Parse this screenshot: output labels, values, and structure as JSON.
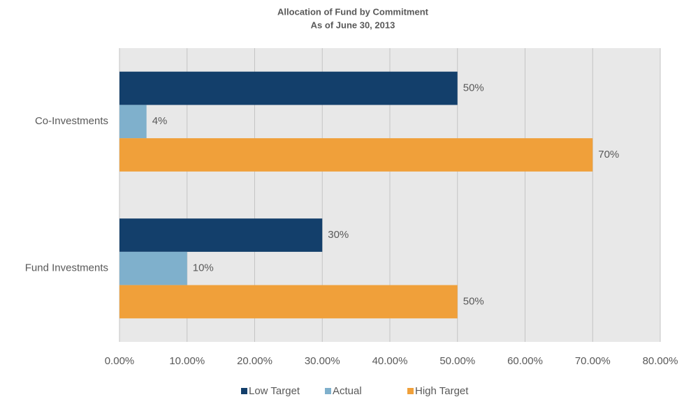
{
  "chart_data": {
    "type": "hbar",
    "title": "Allocation of Fund by Commitment",
    "subtitle": "As of June 30, 2013",
    "categories": [
      "Co-Investments",
      "Fund Investments"
    ],
    "series": [
      {
        "name": "Low Target",
        "color": "#133f6b",
        "values": [
          50,
          30
        ],
        "value_labels": [
          "50%",
          "30%"
        ]
      },
      {
        "name": "Actual",
        "color": "#7fb0cc",
        "values": [
          4,
          10
        ],
        "value_labels": [
          "4%",
          "10%"
        ]
      },
      {
        "name": "High Target",
        "color": "#f0a03a",
        "values": [
          70,
          50
        ],
        "value_labels": [
          "70%",
          "50%"
        ]
      }
    ],
    "xlim": [
      0,
      80
    ],
    "xticks": [
      {
        "value": 0,
        "label": "0.00%"
      },
      {
        "value": 10,
        "label": "10.00%"
      },
      {
        "value": 20,
        "label": "20.00%"
      },
      {
        "value": 30,
        "label": "30.00%"
      },
      {
        "value": 40,
        "label": "40.00%"
      },
      {
        "value": 50,
        "label": "50.00%"
      },
      {
        "value": 60,
        "label": "60.00%"
      },
      {
        "value": 70,
        "label": "70.00%"
      },
      {
        "value": 80,
        "label": "80.00%"
      }
    ],
    "grid": true,
    "legend": "bottom"
  }
}
